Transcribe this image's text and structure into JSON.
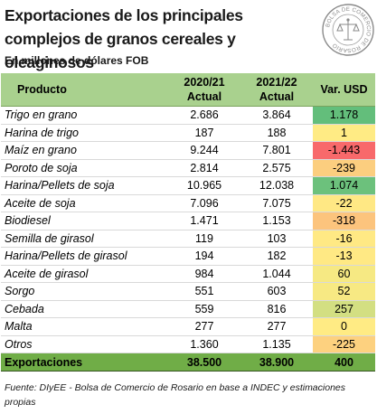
{
  "header": {
    "title": "Exportaciones de los principales complejos de granos cereales y oleaginosos",
    "subtitle": "En millones de dólares FOB",
    "seal_text": "BOLSA DE COMERCIO DE ROSARIO"
  },
  "table": {
    "columns": {
      "product": "Producto",
      "y1_line1": "2020/21",
      "y1_line2": "Actual",
      "y2_line1": "2021/22",
      "y2_line2": "Actual",
      "var": "Var. USD"
    },
    "rows": [
      {
        "name": "Trigo en grano",
        "y1": "2.686",
        "y2": "3.864",
        "var": "1.178",
        "color": "#63be7b"
      },
      {
        "name": "Harina de trigo",
        "y1": "187",
        "y2": "188",
        "var": "1",
        "color": "#ffeb84"
      },
      {
        "name": "Maíz en grano",
        "y1": "9.244",
        "y2": "7.801",
        "var": "-1.443",
        "color": "#f8696b"
      },
      {
        "name": "Poroto de soja",
        "y1": "2.814",
        "y2": "2.575",
        "var": "-239",
        "color": "#fcce7f"
      },
      {
        "name": "Harina/Pellets de soja",
        "y1": "10.965",
        "y2": "12.038",
        "var": "1.074",
        "color": "#6cc17c"
      },
      {
        "name": "Aceite de soja",
        "y1": "7.096",
        "y2": "7.075",
        "var": "-22",
        "color": "#ffe884"
      },
      {
        "name": "Biodiesel",
        "y1": "1.471",
        "y2": "1.153",
        "var": "-318",
        "color": "#fcc47d"
      },
      {
        "name": "Semilla de girasol",
        "y1": "119",
        "y2": "103",
        "var": "-16",
        "color": "#ffe984"
      },
      {
        "name": "Harina/Pellets de girasol",
        "y1": "194",
        "y2": "182",
        "var": "-13",
        "color": "#ffe984"
      },
      {
        "name": "Aceite de girasol",
        "y1": "984",
        "y2": "1.044",
        "var": "60",
        "color": "#f6e983"
      },
      {
        "name": "Sorgo",
        "y1": "551",
        "y2": "603",
        "var": "52",
        "color": "#f7e983"
      },
      {
        "name": "Cebada",
        "y1": "559",
        "y2": "816",
        "var": "257",
        "color": "#d3df82"
      },
      {
        "name": "Malta",
        "y1": "277",
        "y2": "277",
        "var": "0",
        "color": "#ffeb84"
      },
      {
        "name": "Otros",
        "y1": "1.360",
        "y2": "1.135",
        "var": "-225",
        "color": "#fdd17f"
      }
    ],
    "total": {
      "name": "Exportaciones",
      "y1": "38.500",
      "y2": "38.900",
      "var": "400"
    }
  },
  "footer": {
    "source": "Fuente: DIyEE - Bolsa de Comercio de Rosario en base a INDEC y estimaciones propias"
  },
  "colors": {
    "header_bg": "#a9d18e",
    "total_bg": "#70ad47"
  }
}
